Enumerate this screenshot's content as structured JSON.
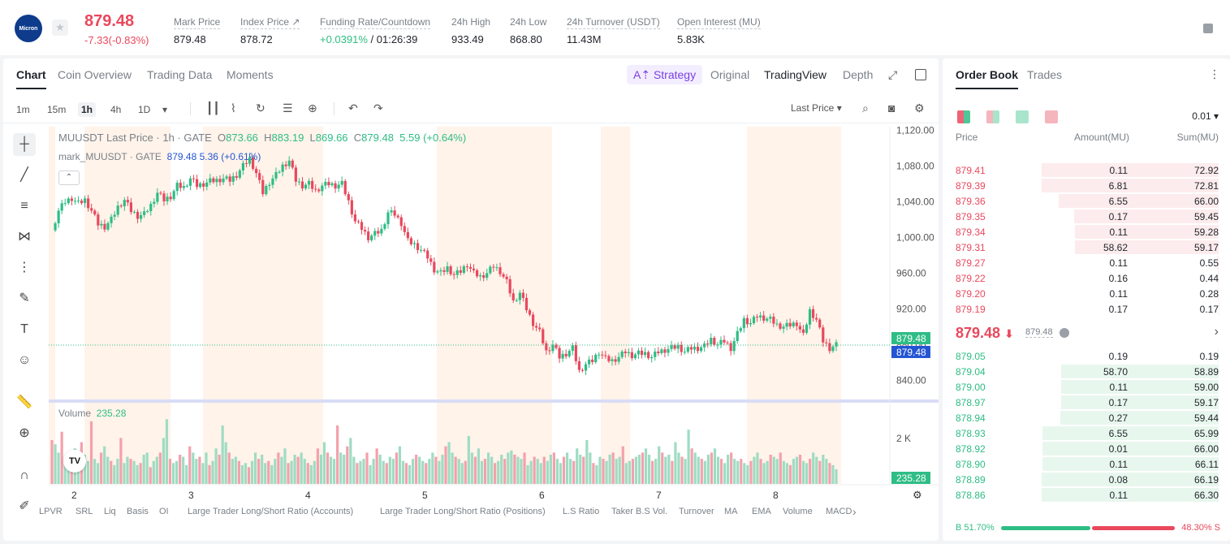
{
  "header": {
    "logo_text": "Micron",
    "last_price": "879.48",
    "change": "-7.33(-0.83%)",
    "stats": [
      {
        "label": "Mark Price",
        "value": "879.48"
      },
      {
        "label": "Index Price ↗",
        "value": "878.72"
      },
      {
        "label": "Funding Rate/Countdown",
        "value_green": "+0.0391%",
        "value": " / 01:26:39"
      },
      {
        "label": "24h High",
        "value": "933.49"
      },
      {
        "label": "24h Low",
        "value": "868.80"
      },
      {
        "label": "24h Turnover (USDT)",
        "value": "11.43M"
      },
      {
        "label": "Open Interest (MU)",
        "value": "5.83K"
      }
    ]
  },
  "chart_tabs": [
    "Chart",
    "Coin Overview",
    "Trading Data",
    "Moments"
  ],
  "strategy_label": "A⇡ Strategy",
  "view_tabs": [
    "Original",
    "TradingView",
    "Depth"
  ],
  "timeframes": [
    "1m",
    "15m",
    "1h",
    "4h",
    "1D"
  ],
  "timeframe_dropdown": "▾",
  "price_type": "Last Price ▾",
  "legend": {
    "symbol": "MUUSDT Last Price · 1h · GATE",
    "ohlc_o_label": "O",
    "ohlc_o": "873.66",
    "ohlc_h_label": "H",
    "ohlc_h": "883.19",
    "ohlc_l_label": "L",
    "ohlc_l": "869.66",
    "ohlc_c_label": "C",
    "ohlc_c": "879.48",
    "change": "5.59 (+0.64%)",
    "mark_symbol": "mark_MUUSDT · GATE",
    "mark_value": "879.48 5.36 (+0.61%)",
    "collapse": "⌃"
  },
  "volume_legend": {
    "label": "Volume",
    "value": "235.28"
  },
  "tv_logo": "TV",
  "settings_icon": "⚙",
  "chart_data": {
    "type": "candlestick",
    "price_axis": {
      "ticks": [
        840,
        880,
        920,
        960,
        1000,
        1040,
        1080,
        1120
      ],
      "labels": [
        "840.00",
        "880.00",
        "920.00",
        "960.00",
        "1,000.00",
        "1,040.00",
        "1,080.00",
        "1,120.00"
      ]
    },
    "x_axis": {
      "labels": [
        "2",
        "3",
        "4",
        "5",
        "6",
        "7",
        "8"
      ]
    },
    "volume_axis": {
      "labels": [
        "2 K"
      ]
    },
    "current_price_labels": [
      "879.48",
      "879.48"
    ],
    "volume_current_label": "235.28",
    "close_path": [
      [
        0,
        1008
      ],
      [
        2,
        1030
      ],
      [
        4,
        1040
      ],
      [
        6,
        1044
      ],
      [
        8,
        1038
      ],
      [
        10,
        1042
      ],
      [
        12,
        1030
      ],
      [
        14,
        1015
      ],
      [
        16,
        1012
      ],
      [
        18,
        1020
      ],
      [
        20,
        1034
      ],
      [
        22,
        1042
      ],
      [
        24,
        1030
      ],
      [
        26,
        1024
      ],
      [
        28,
        1026
      ],
      [
        30,
        1036
      ],
      [
        32,
        1050
      ],
      [
        34,
        1042
      ],
      [
        36,
        1046
      ],
      [
        38,
        1058
      ],
      [
        40,
        1056
      ],
      [
        42,
        1066
      ],
      [
        44,
        1058
      ],
      [
        46,
        1060
      ],
      [
        48,
        1063
      ],
      [
        50,
        1064
      ],
      [
        52,
        1066
      ],
      [
        54,
        1064
      ],
      [
        56,
        1070
      ],
      [
        58,
        1080
      ],
      [
        60,
        1088
      ],
      [
        62,
        1072
      ],
      [
        64,
        1050
      ],
      [
        66,
        1062
      ],
      [
        68,
        1070
      ],
      [
        70,
        1080
      ],
      [
        72,
        1086
      ],
      [
        74,
        1064
      ],
      [
        76,
        1058
      ],
      [
        78,
        1060
      ],
      [
        80,
        1052
      ],
      [
        82,
        1058
      ],
      [
        84,
        1060
      ],
      [
        86,
        1058
      ],
      [
        88,
        1060
      ],
      [
        90,
        1040
      ],
      [
        92,
        1018
      ],
      [
        94,
        1010
      ],
      [
        96,
        1000
      ],
      [
        98,
        1004
      ],
      [
        100,
        1008
      ],
      [
        102,
        1028
      ],
      [
        104,
        1026
      ],
      [
        106,
        1016
      ],
      [
        108,
        996
      ],
      [
        110,
        992
      ],
      [
        112,
        986
      ],
      [
        114,
        978
      ],
      [
        116,
        964
      ],
      [
        118,
        960
      ],
      [
        120,
        966
      ],
      [
        122,
        958
      ],
      [
        124,
        962
      ],
      [
        126,
        970
      ],
      [
        128,
        960
      ],
      [
        130,
        956
      ],
      [
        132,
        960
      ],
      [
        134,
        968
      ],
      [
        136,
        962
      ],
      [
        138,
        950
      ],
      [
        140,
        928
      ],
      [
        142,
        938
      ],
      [
        144,
        920
      ],
      [
        146,
        904
      ],
      [
        148,
        894
      ],
      [
        150,
        872
      ],
      [
        152,
        880
      ],
      [
        154,
        866
      ],
      [
        156,
        870
      ],
      [
        158,
        876
      ],
      [
        160,
        850
      ],
      [
        162,
        858
      ],
      [
        164,
        862
      ],
      [
        166,
        872
      ],
      [
        168,
        864
      ],
      [
        170,
        862
      ],
      [
        172,
        866
      ],
      [
        174,
        872
      ],
      [
        176,
        868
      ],
      [
        178,
        870
      ],
      [
        180,
        870
      ],
      [
        182,
        866
      ],
      [
        184,
        872
      ],
      [
        186,
        874
      ],
      [
        188,
        876
      ],
      [
        190,
        878
      ],
      [
        192,
        872
      ],
      [
        194,
        876
      ],
      [
        196,
        876
      ],
      [
        198,
        878
      ],
      [
        200,
        886
      ],
      [
        202,
        880
      ],
      [
        204,
        884
      ],
      [
        206,
        876
      ],
      [
        208,
        892
      ],
      [
        210,
        908
      ],
      [
        212,
        904
      ],
      [
        214,
        912
      ],
      [
        216,
        910
      ],
      [
        218,
        908
      ],
      [
        220,
        902
      ],
      [
        222,
        900
      ],
      [
        224,
        902
      ],
      [
        226,
        904
      ],
      [
        228,
        890
      ],
      [
        230,
        918
      ],
      [
        232,
        908
      ],
      [
        234,
        884
      ],
      [
        236,
        876
      ],
      [
        238,
        879.48
      ]
    ],
    "volume_bars": [
      42,
      38,
      30,
      50,
      22,
      18,
      26,
      34,
      30,
      40,
      28,
      22,
      60,
      24,
      20,
      30,
      36,
      26,
      22,
      18,
      24,
      44,
      20,
      26,
      24,
      22,
      18,
      20,
      28,
      30,
      16,
      22,
      26,
      30,
      44,
      62,
      24,
      20,
      22,
      28,
      26,
      18,
      36,
      30,
      24,
      26,
      20,
      30,
      18,
      22,
      34,
      28,
      56,
      40,
      30,
      24,
      26,
      22,
      18,
      20,
      16,
      22,
      30,
      24,
      28,
      20,
      22,
      18,
      24,
      30,
      26,
      34,
      20,
      22,
      28,
      26,
      30,
      24,
      20,
      18,
      22,
      34,
      28,
      40,
      30,
      26,
      24,
      56,
      30,
      28,
      36,
      44,
      26,
      20,
      22,
      24,
      30,
      18,
      24,
      34,
      28,
      22,
      20,
      26,
      24,
      30,
      36,
      22,
      20,
      18,
      24,
      28,
      26,
      22,
      20,
      24,
      30,
      26,
      22,
      28,
      36,
      40,
      30,
      26,
      24,
      20,
      22,
      46,
      30,
      26,
      34,
      22,
      24,
      30,
      26,
      20,
      22,
      28,
      24,
      30,
      32,
      28,
      26,
      24,
      30,
      18,
      22,
      26,
      24,
      20,
      26,
      22,
      28,
      30,
      24,
      20,
      26,
      30,
      24,
      22,
      34,
      28,
      26,
      42,
      30,
      20,
      18,
      26,
      24,
      22,
      28,
      30,
      24,
      26,
      36,
      20,
      22,
      24,
      26,
      28,
      30,
      34,
      28,
      22,
      24,
      36,
      30,
      26,
      28,
      22,
      40,
      30,
      26,
      24,
      52,
      34,
      30,
      26,
      24,
      22,
      28,
      30,
      34,
      26,
      24,
      20,
      28,
      30,
      24,
      22,
      24,
      20,
      18,
      22,
      26,
      30,
      24,
      20,
      22,
      28,
      26,
      24,
      30,
      22,
      20,
      18,
      24,
      26,
      28,
      22,
      20,
      24,
      30,
      26,
      22,
      28,
      24,
      20,
      18,
      14
    ]
  },
  "indicators": [
    "LPVR",
    "SRL",
    "Liq",
    "Basis",
    "OI",
    "Large Trader Long/Short Ratio (Accounts)",
    "Large Trader Long/Short Ratio (Positions)",
    "L.S Ratio",
    "Taker B.S Vol.",
    "Turnover",
    "MA",
    "EMA",
    "Volume",
    "MACD"
  ],
  "indicator_more": "›",
  "orderbook": {
    "tabs": [
      "Order Book",
      "Trades"
    ],
    "precision": "0.01 ▾",
    "headers": {
      "price": "Price",
      "amount": "Amount(MU)",
      "sum": "Sum(MU)"
    },
    "asks": [
      {
        "price": "879.41",
        "amount": "0.11",
        "sum": "72.92",
        "depth": 1.0
      },
      {
        "price": "879.39",
        "amount": "6.81",
        "sum": "72.81",
        "depth": 0.998
      },
      {
        "price": "879.36",
        "amount": "6.55",
        "sum": "66.00",
        "depth": 0.905
      },
      {
        "price": "879.35",
        "amount": "0.17",
        "sum": "59.45",
        "depth": 0.815
      },
      {
        "price": "879.34",
        "amount": "0.11",
        "sum": "59.28",
        "depth": 0.813
      },
      {
        "price": "879.31",
        "amount": "58.62",
        "sum": "59.17",
        "depth": 0.811
      },
      {
        "price": "879.27",
        "amount": "0.11",
        "sum": "0.55",
        "depth": 0.0075
      },
      {
        "price": "879.22",
        "amount": "0.16",
        "sum": "0.44",
        "depth": 0.006
      },
      {
        "price": "879.20",
        "amount": "0.11",
        "sum": "0.28",
        "depth": 0.0038
      },
      {
        "price": "879.19",
        "amount": "0.17",
        "sum": "0.17",
        "depth": 0.0023
      }
    ],
    "mid_price": "879.48",
    "mid_arrow": "⬇",
    "mark_price": "879.48",
    "bids": [
      {
        "price": "879.05",
        "amount": "0.19",
        "sum": "0.19",
        "depth": 0.003
      },
      {
        "price": "879.04",
        "amount": "58.70",
        "sum": "58.89",
        "depth": 0.888
      },
      {
        "price": "879.00",
        "amount": "0.11",
        "sum": "59.00",
        "depth": 0.889
      },
      {
        "price": "878.97",
        "amount": "0.17",
        "sum": "59.17",
        "depth": 0.892
      },
      {
        "price": "878.94",
        "amount": "0.27",
        "sum": "59.44",
        "depth": 0.896
      },
      {
        "price": "878.93",
        "amount": "6.55",
        "sum": "65.99",
        "depth": 0.995
      },
      {
        "price": "878.92",
        "amount": "0.01",
        "sum": "66.00",
        "depth": 0.995
      },
      {
        "price": "878.90",
        "amount": "0.11",
        "sum": "66.11",
        "depth": 0.997
      },
      {
        "price": "878.89",
        "amount": "0.08",
        "sum": "66.19",
        "depth": 0.998
      },
      {
        "price": "878.86",
        "amount": "0.11",
        "sum": "66.30",
        "depth": 1.0
      }
    ],
    "buy_ratio": "B 51.70%",
    "sell_ratio": "48.30% S",
    "buy_fraction": 0.517
  },
  "colors": {
    "up": "#2ebd85",
    "down": "#e9485d",
    "accent": "#2455d3",
    "shade": "#fff3ea"
  }
}
